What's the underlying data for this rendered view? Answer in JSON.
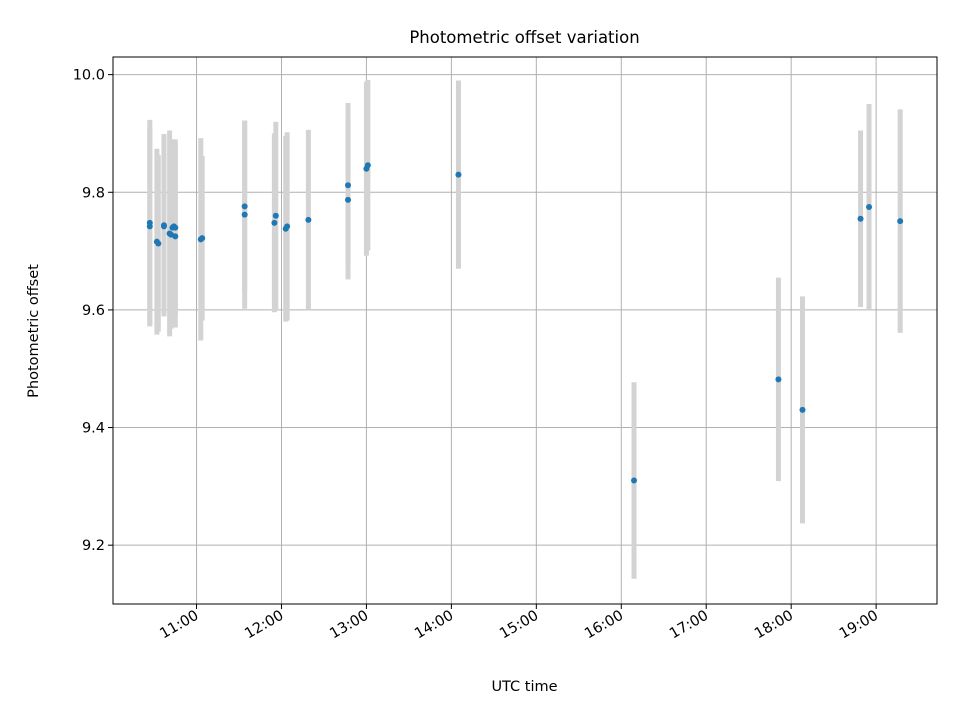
{
  "chart_data": {
    "type": "scatter",
    "title": "Photometric offset variation",
    "xlabel": "UTC time",
    "ylabel": "Photometric offset",
    "xlim": [
      "10:01",
      "19:43"
    ],
    "ylim": [
      9.1,
      10.03
    ],
    "x_ticks": [
      "11:00",
      "12:00",
      "13:00",
      "14:00",
      "15:00",
      "16:00",
      "17:00",
      "18:00",
      "19:00"
    ],
    "y_ticks": [
      9.2,
      9.4,
      9.6,
      9.8,
      10.0
    ],
    "y_tick_labels": [
      "9.2",
      "9.4",
      "9.6",
      "9.8",
      "10.0"
    ],
    "grid": true,
    "marker_color": "#1f77b4",
    "errorbar_color": "#d3d3d3",
    "series": [
      {
        "points": [
          {
            "x": "10:27",
            "y": 9.748,
            "yerr": 0.175
          },
          {
            "x": "10:27",
            "y": 9.742,
            "yerr": 0.17
          },
          {
            "x": "10:32",
            "y": 9.716,
            "yerr": 0.158
          },
          {
            "x": "10:33",
            "y": 9.713,
            "yerr": 0.15
          },
          {
            "x": "10:37",
            "y": 9.744,
            "yerr": 0.155
          },
          {
            "x": "10:37",
            "y": 9.742,
            "yerr": 0.15
          },
          {
            "x": "10:41",
            "y": 9.73,
            "yerr": 0.175
          },
          {
            "x": "10:42",
            "y": 9.728,
            "yerr": 0.16
          },
          {
            "x": "10:43",
            "y": 9.74,
            "yerr": 0.145
          },
          {
            "x": "10:44",
            "y": 9.742,
            "yerr": 0.148
          },
          {
            "x": "10:45",
            "y": 9.725,
            "yerr": 0.155
          },
          {
            "x": "10:45",
            "y": 9.74,
            "yerr": 0.15
          },
          {
            "x": "11:03",
            "y": 9.72,
            "yerr": 0.172
          },
          {
            "x": "11:04",
            "y": 9.722,
            "yerr": 0.14
          },
          {
            "x": "11:34",
            "y": 9.762,
            "yerr": 0.16
          },
          {
            "x": "11:34",
            "y": 9.776,
            "yerr": 0.145
          },
          {
            "x": "11:55",
            "y": 9.748,
            "yerr": 0.152
          },
          {
            "x": "11:56",
            "y": 9.76,
            "yerr": 0.16
          },
          {
            "x": "12:03",
            "y": 9.738,
            "yerr": 0.158
          },
          {
            "x": "12:04",
            "y": 9.742,
            "yerr": 0.16
          },
          {
            "x": "12:19",
            "y": 9.753,
            "yerr": 0.153
          },
          {
            "x": "12:47",
            "y": 9.787,
            "yerr": 0.135
          },
          {
            "x": "12:47",
            "y": 9.812,
            "yerr": 0.14
          },
          {
            "x": "13:00",
            "y": 9.84,
            "yerr": 0.148
          },
          {
            "x": "13:01",
            "y": 9.846,
            "yerr": 0.145
          },
          {
            "x": "14:05",
            "y": 9.83,
            "yerr": 0.16
          },
          {
            "x": "16:09",
            "y": 9.31,
            "yerr": 0.167
          },
          {
            "x": "17:51",
            "y": 9.482,
            "yerr": 0.173
          },
          {
            "x": "18:08",
            "y": 9.43,
            "yerr": 0.193
          },
          {
            "x": "18:49",
            "y": 9.755,
            "yerr": 0.15
          },
          {
            "x": "18:55",
            "y": 9.775,
            "yerr": 0.175
          },
          {
            "x": "19:17",
            "y": 9.751,
            "yerr": 0.19
          }
        ]
      }
    ]
  }
}
